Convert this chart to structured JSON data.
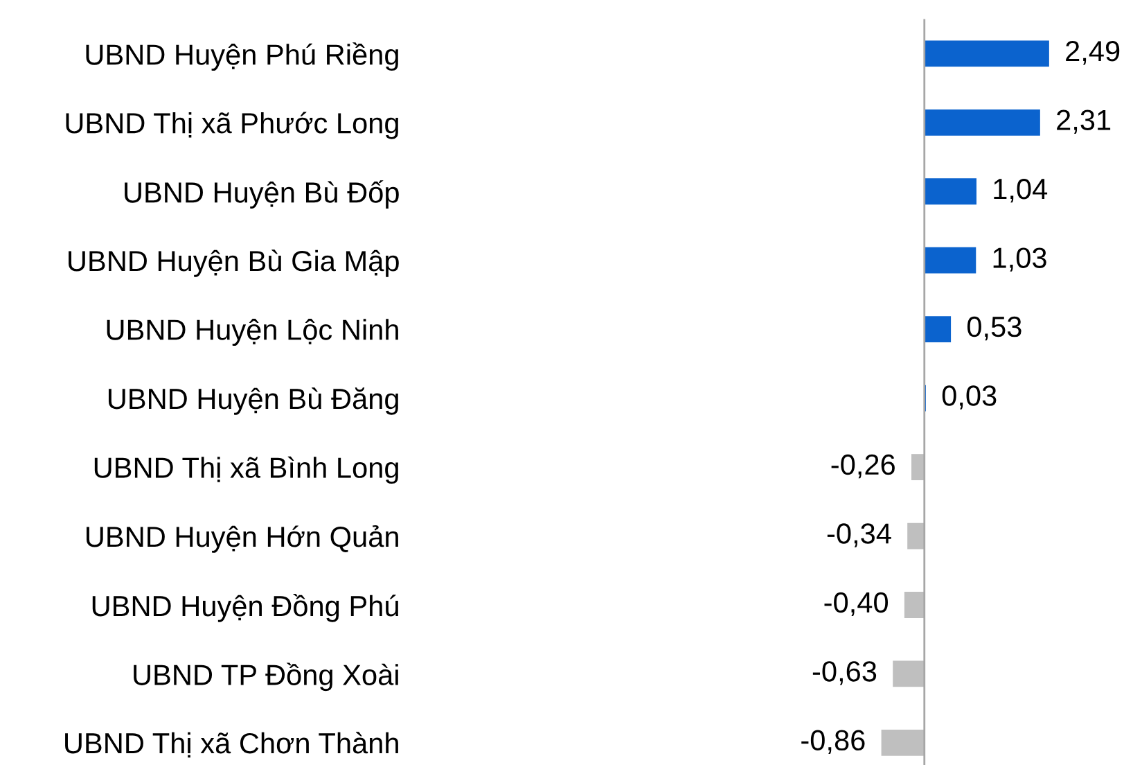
{
  "chart_data": {
    "type": "bar",
    "orientation": "horizontal",
    "value_labels": [
      "2,49",
      "2,31",
      "1,04",
      "1,03",
      "0,53",
      "0,03",
      "-0,26",
      "-0,34",
      "-0,40",
      "-0,63",
      "-0,86"
    ],
    "categories": [
      "UBND Huyện Phú Riềng",
      "UBND Thị xã Phước Long",
      "UBND Huyện Bù Đốp",
      "UBND Huyện Bù Gia Mập",
      "UBND Huyện Lộc Ninh",
      "UBND Huyện Bù Đăng",
      "UBND Thị xã Bình Long",
      "UBND Huyện Hớn Quản",
      "UBND Huyện Đồng Phú",
      "UBND TP Đồng Xoài",
      "UBND Thị xã Chơn Thành"
    ],
    "values": [
      2.49,
      2.31,
      1.04,
      1.03,
      0.53,
      0.03,
      -0.26,
      -0.34,
      -0.4,
      -0.63,
      -0.86
    ],
    "colors": [
      "#0b63ce",
      "#0b63ce",
      "#0b63ce",
      "#0b63ce",
      "#0b63ce",
      "#0b63ce",
      "#bfbfbf",
      "#bfbfbf",
      "#bfbfbf",
      "#bfbfbf",
      "#bfbfbf"
    ]
  }
}
